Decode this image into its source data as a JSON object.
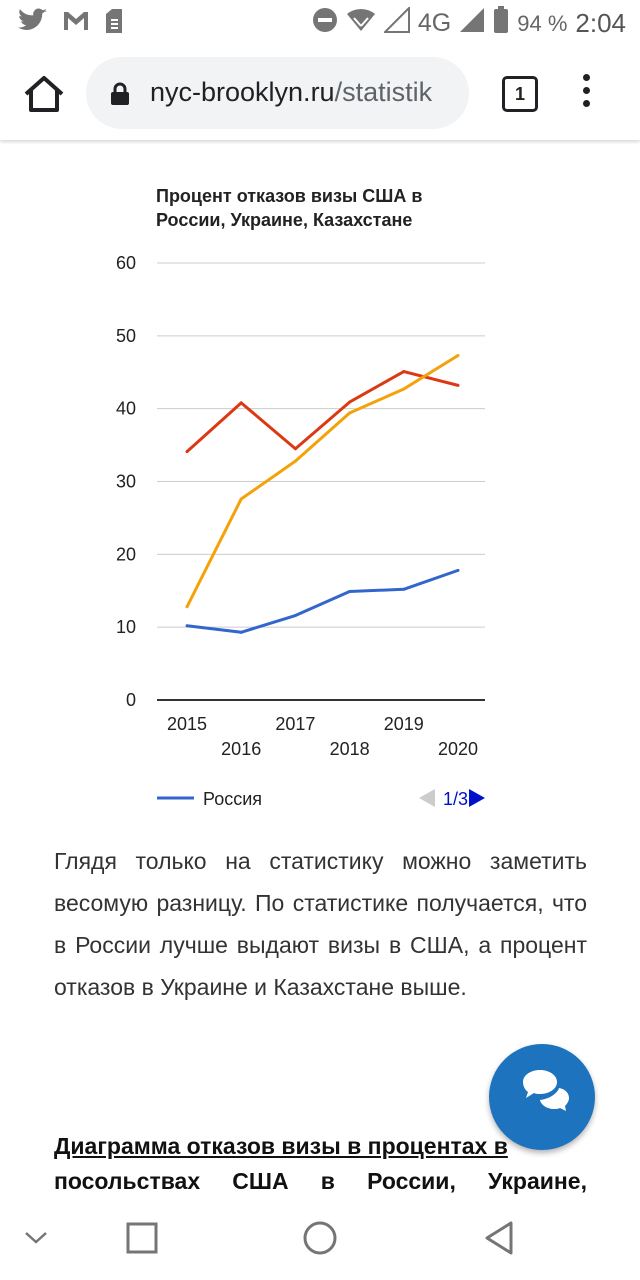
{
  "status_bar": {
    "battery": "94 %",
    "time": "2:04",
    "network": "4G",
    "icons": [
      "twitter-icon",
      "gmail-icon",
      "sim-icon",
      "do-not-disturb-icon",
      "wifi-icon",
      "signal-icon",
      "battery-icon"
    ]
  },
  "browser": {
    "url_host": "nyc-brooklyn.ru",
    "url_path": "/statistik",
    "tab_count": "1"
  },
  "chart_data": {
    "type": "line",
    "title_line1": "Процент отказов визы США в",
    "title_line2": "России, Украине, Казахстане",
    "x": [
      2015,
      2016,
      2017,
      2018,
      2019,
      2020
    ],
    "x_tick_labels_top": [
      "2015",
      "2017",
      "2019"
    ],
    "x_tick_labels_bottom": [
      "2016",
      "2018",
      "2020"
    ],
    "y_ticks": [
      "0",
      "10",
      "20",
      "30",
      "40",
      "50",
      "60"
    ],
    "ylim": [
      0,
      60
    ],
    "grid": true,
    "legend_position": "bottom-left",
    "series": [
      {
        "name": "Россия",
        "color": "#3366cc",
        "values": [
          10.2,
          9.3,
          11.6,
          14.9,
          15.2,
          17.8
        ]
      },
      {
        "color": "#dc3912",
        "values": [
          34.1,
          40.8,
          34.5,
          40.9,
          45.1,
          43.2
        ]
      },
      {
        "color": "#f4a20a",
        "values": [
          12.8,
          27.6,
          32.8,
          39.4,
          42.7,
          47.3
        ]
      }
    ],
    "legend_label": "Россия",
    "legend_page": "1/3"
  },
  "article": {
    "paragraph": "Глядя только на статистику можно заметить весомую разницу. По статистике получается, что в России лучше выдают визы в США, а процент отказов в Украине и Казахстане выше.",
    "heading_line1": "Диаграмма отказов визы в процентах в",
    "heading_line2": "посольствах США в России, Украине,"
  },
  "nav": {
    "icons": [
      "chevron-down-icon",
      "recents-icon",
      "home-circle-icon",
      "back-triangle-icon"
    ]
  },
  "colors": {
    "fab": "#1e73be",
    "link": "#1a0dab"
  }
}
